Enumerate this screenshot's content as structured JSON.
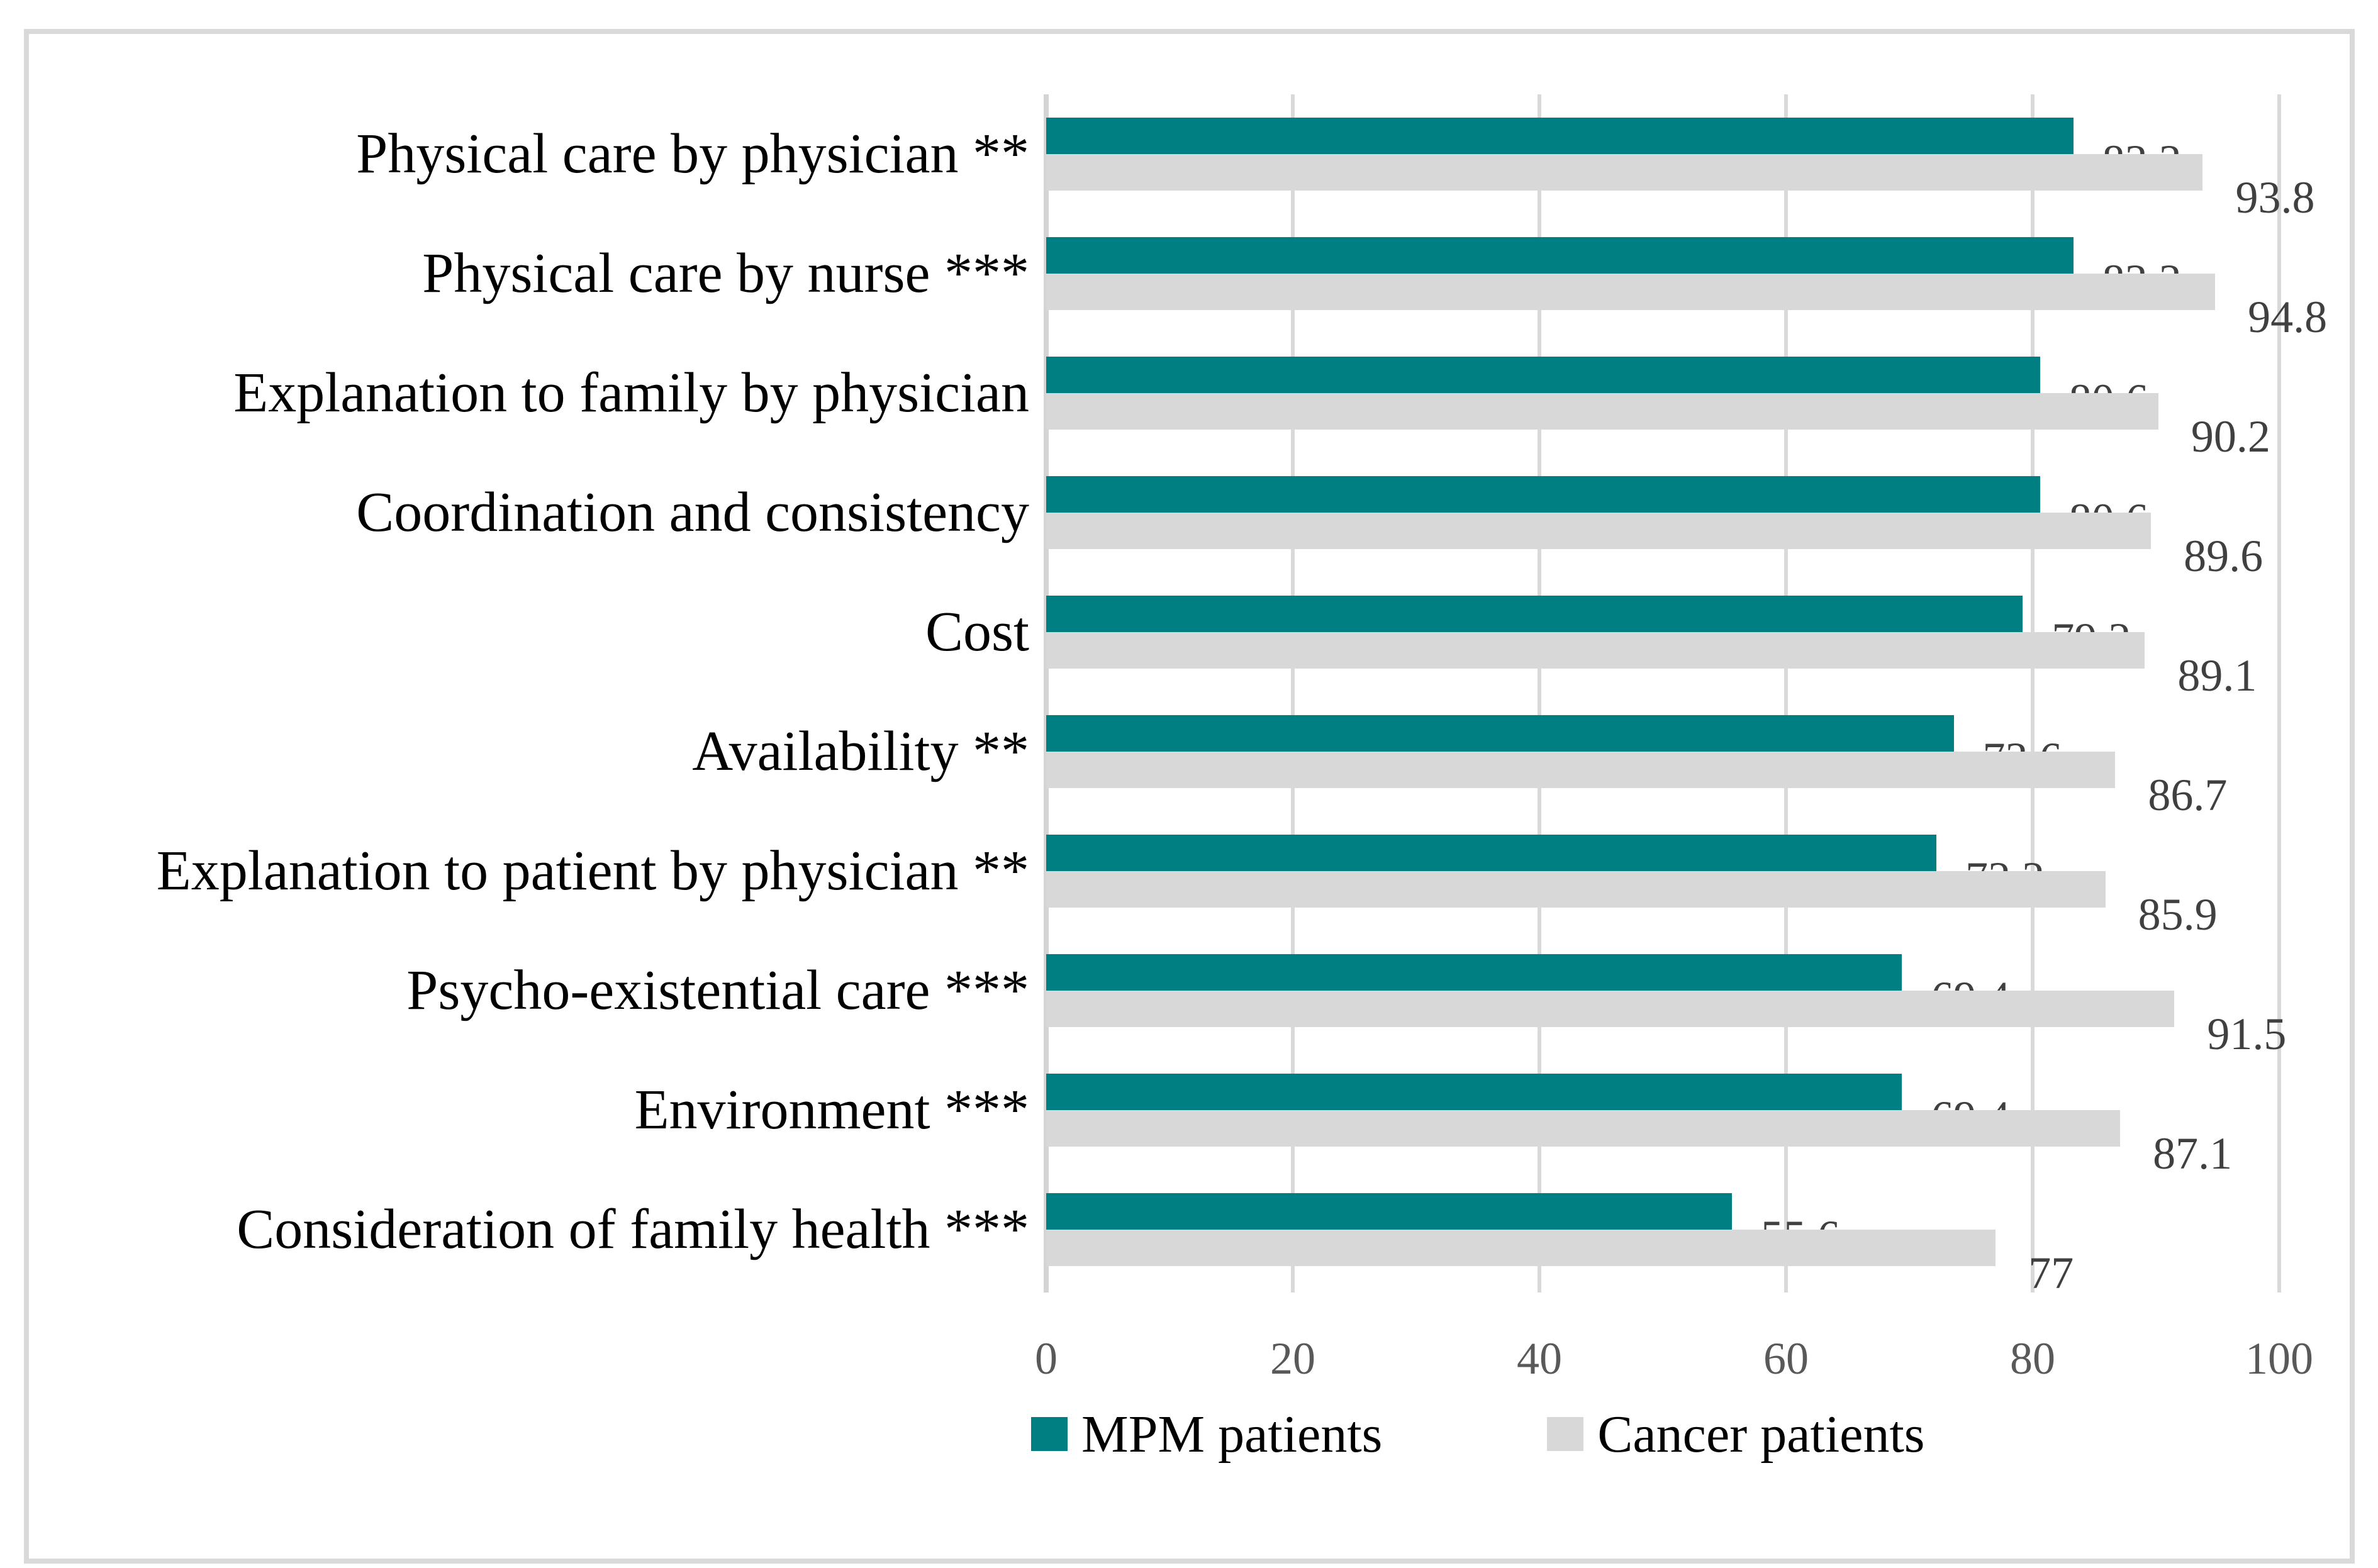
{
  "figure": {
    "background": "#ffffff",
    "border_color": "#d9d9d9"
  },
  "chart_data": {
    "type": "bar",
    "orientation": "horizontal",
    "title": "",
    "xlabel": "",
    "ylabel": "",
    "categories": [
      "Physical care by physician **",
      "Physical care by nurse ***",
      "Explanation to family by physician",
      "Coordination and consistency",
      "Cost",
      "Availability **",
      "Explanation to patient by physician **",
      "Psycho-existential care ***",
      "Environment ***",
      "Consideration of family health ***"
    ],
    "series": [
      {
        "name": "MPM patients",
        "color": "#007f82",
        "values": [
          83.3,
          83.3,
          80.6,
          80.6,
          79.2,
          73.6,
          72.2,
          69.4,
          69.4,
          55.6
        ],
        "labels": [
          "83.3",
          "83.3",
          "80.6",
          "80.6",
          "79.2",
          "73.6",
          "72.2",
          "69.4",
          "69.4",
          "55.6"
        ]
      },
      {
        "name": "Cancer patients",
        "color": "#d8d8d8",
        "values": [
          93.8,
          94.8,
          90.2,
          89.6,
          89.1,
          86.7,
          85.9,
          91.5,
          87.1,
          77
        ],
        "labels": [
          "93.8",
          "94.8",
          "90.2",
          "89.6",
          "89.1",
          "86.7",
          "85.9",
          "91.5",
          "87.1",
          "77"
        ]
      }
    ],
    "xlim": [
      0,
      100
    ],
    "x_ticks": [
      "0",
      "20",
      "40",
      "60",
      "80",
      "100"
    ],
    "grid": "vertical",
    "legend_position": "bottom",
    "value_labels": true,
    "colors": {
      "value_label": "#404040",
      "tick_label": "#595959",
      "category_label": "#000000",
      "gridline": "#d9d9d9"
    }
  }
}
